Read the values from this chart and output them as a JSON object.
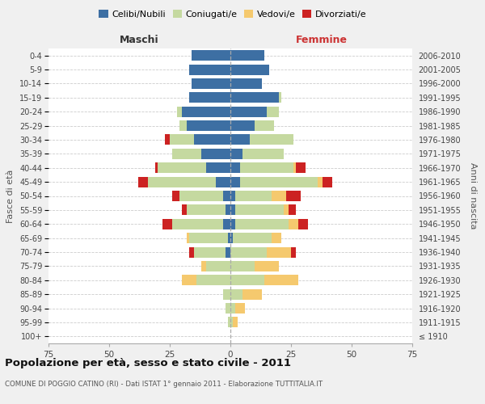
{
  "age_groups": [
    "100+",
    "95-99",
    "90-94",
    "85-89",
    "80-84",
    "75-79",
    "70-74",
    "65-69",
    "60-64",
    "55-59",
    "50-54",
    "45-49",
    "40-44",
    "35-39",
    "30-34",
    "25-29",
    "20-24",
    "15-19",
    "10-14",
    "5-9",
    "0-4"
  ],
  "birth_years": [
    "≤ 1910",
    "1911-1915",
    "1916-1920",
    "1921-1925",
    "1926-1930",
    "1931-1935",
    "1936-1940",
    "1941-1945",
    "1946-1950",
    "1951-1955",
    "1956-1960",
    "1961-1965",
    "1966-1970",
    "1971-1975",
    "1976-1980",
    "1981-1985",
    "1986-1990",
    "1991-1995",
    "1996-2000",
    "2001-2005",
    "2006-2010"
  ],
  "males": {
    "celibi": [
      0,
      0,
      0,
      0,
      0,
      0,
      2,
      1,
      3,
      2,
      3,
      6,
      10,
      12,
      15,
      18,
      20,
      17,
      16,
      17,
      16
    ],
    "coniugati": [
      0,
      1,
      2,
      3,
      14,
      10,
      13,
      16,
      21,
      16,
      18,
      28,
      20,
      12,
      10,
      3,
      2,
      0,
      0,
      0,
      0
    ],
    "vedovi": [
      0,
      0,
      0,
      0,
      6,
      2,
      0,
      1,
      0,
      0,
      0,
      0,
      0,
      0,
      0,
      0,
      0,
      0,
      0,
      0,
      0
    ],
    "divorziati": [
      0,
      0,
      0,
      0,
      0,
      0,
      2,
      0,
      4,
      2,
      3,
      4,
      1,
      0,
      2,
      0,
      0,
      0,
      0,
      0,
      0
    ]
  },
  "females": {
    "nubili": [
      0,
      0,
      0,
      0,
      0,
      0,
      0,
      1,
      2,
      2,
      2,
      4,
      4,
      5,
      8,
      10,
      15,
      20,
      13,
      16,
      14
    ],
    "coniugate": [
      0,
      1,
      2,
      5,
      14,
      10,
      15,
      16,
      22,
      20,
      15,
      32,
      22,
      17,
      18,
      8,
      5,
      1,
      0,
      0,
      0
    ],
    "vedove": [
      0,
      2,
      4,
      8,
      14,
      10,
      10,
      4,
      4,
      2,
      6,
      2,
      1,
      0,
      0,
      0,
      0,
      0,
      0,
      0,
      0
    ],
    "divorziate": [
      0,
      0,
      0,
      0,
      0,
      0,
      2,
      0,
      4,
      3,
      6,
      4,
      4,
      0,
      0,
      0,
      0,
      0,
      0,
      0,
      0
    ]
  },
  "colors": {
    "celibi": "#3d6fa3",
    "coniugati": "#c5d9a0",
    "vedovi": "#f5c96e",
    "divorziati": "#cc2222"
  },
  "xlim": 75,
  "title": "Popolazione per età, sesso e stato civile - 2011",
  "subtitle": "COMUNE DI POGGIO CATINO (RI) - Dati ISTAT 1° gennaio 2011 - Elaborazione TUTTITALIA.IT",
  "label_maschi": "Maschi",
  "label_femmine": "Femmine",
  "ylabel_left": "Fasce di età",
  "ylabel_right": "Anni di nascita",
  "legend_labels": [
    "Celibi/Nubili",
    "Coniugati/e",
    "Vedovi/e",
    "Divorziati/e"
  ],
  "bg_color": "#f0f0f0",
  "plot_bg": "#ffffff"
}
